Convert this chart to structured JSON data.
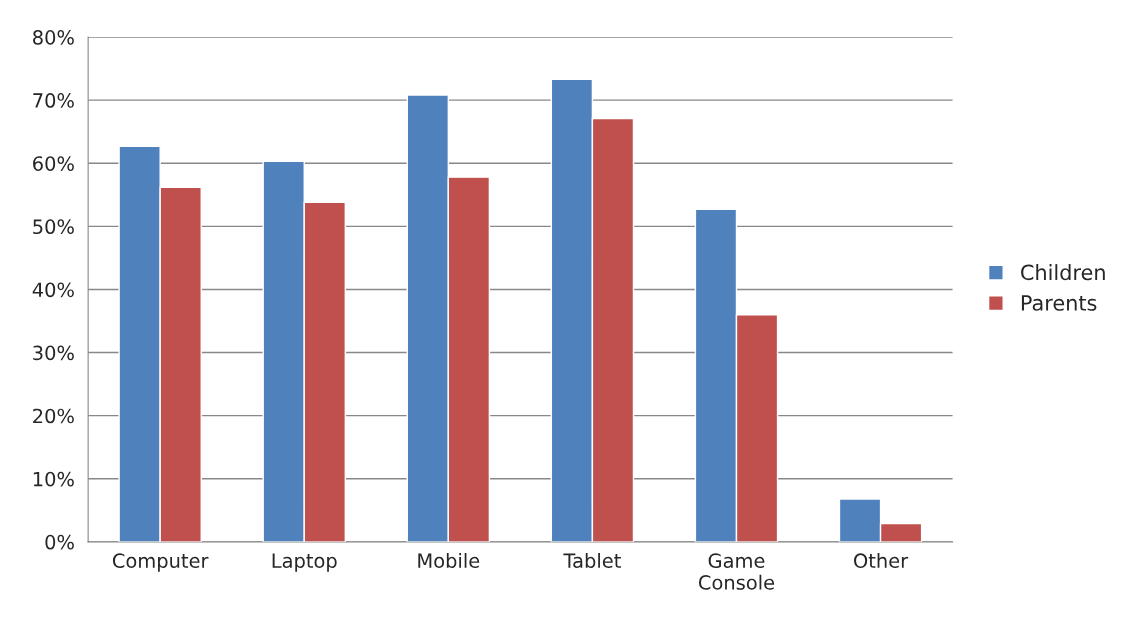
{
  "chart_data": {
    "type": "bar",
    "categories": [
      "Computer",
      "Laptop",
      "Mobile",
      "Tablet",
      "Game\nConsole",
      "Other"
    ],
    "series": [
      {
        "name": "Children",
        "color": "#4f81bd",
        "values": [
          62.7,
          60.3,
          70.8,
          73.3,
          52.7,
          6.8
        ]
      },
      {
        "name": "Parents",
        "color": "#c0504d",
        "values": [
          56.2,
          53.8,
          57.8,
          67.1,
          36.0,
          2.9
        ]
      }
    ],
    "ylim": [
      0,
      80
    ],
    "yticks": [
      {
        "value": 0,
        "label": "0%"
      },
      {
        "value": 10,
        "label": "10%"
      },
      {
        "value": 20,
        "label": "20%"
      },
      {
        "value": 30,
        "label": "30%"
      },
      {
        "value": 40,
        "label": "40%"
      },
      {
        "value": 50,
        "label": "50%"
      },
      {
        "value": 60,
        "label": "60%"
      },
      {
        "value": 70,
        "label": "70%"
      },
      {
        "value": 80,
        "label": "80%"
      }
    ],
    "grid": "y",
    "legend": "right"
  }
}
